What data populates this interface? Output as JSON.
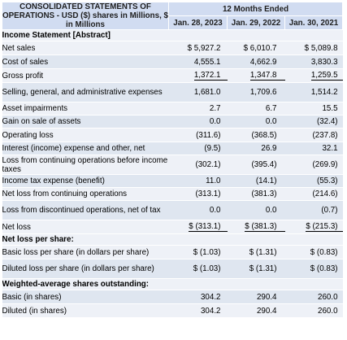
{
  "header": {
    "statement_title": "CONSOLIDATED STATEMENTS OF OPERATIONS - USD ($) shares in Millions, $ in Millions",
    "period_label": "12 Months Ended",
    "columns": [
      "Jan. 28, 2023",
      "Jan. 29, 2022",
      "Jan. 30, 2021"
    ]
  },
  "rows": [
    {
      "label": "Income Statement [Abstract]",
      "section": true,
      "values": [
        "",
        "",
        ""
      ]
    },
    {
      "label": "Net sales",
      "values": [
        "$ 5,927.2",
        "$ 6,010.7",
        "$ 5,089.8"
      ]
    },
    {
      "label": "Cost of sales",
      "values": [
        "4,555.1",
        "4,662.9",
        "3,830.3"
      ]
    },
    {
      "label": "Gross profit",
      "values": [
        "1,372.1",
        "1,347.8",
        "1,259.5"
      ]
    },
    {
      "label": "Selling, general, and administrative expenses",
      "values": [
        "1,681.0",
        "1,709.6",
        "1,514.2"
      ]
    },
    {
      "label": "Asset impairments",
      "values": [
        "2.7",
        "6.7",
        "15.5"
      ]
    },
    {
      "label": "Gain on sale of assets",
      "values": [
        "0.0",
        "0.0",
        "(32.4)"
      ]
    },
    {
      "label": "Operating loss",
      "values": [
        "(311.6)",
        "(368.5)",
        "(237.8)"
      ]
    },
    {
      "label": "Interest (income) expense and other, net",
      "values": [
        "(9.5)",
        "26.9",
        "32.1"
      ]
    },
    {
      "label": "Loss from continuing operations before income taxes",
      "values": [
        "(302.1)",
        "(395.4)",
        "(269.9)"
      ]
    },
    {
      "label": "Income tax expense (benefit)",
      "values": [
        "11.0",
        "(14.1)",
        "(55.3)"
      ]
    },
    {
      "label": "Net loss from continuing operations",
      "values": [
        "(313.1)",
        "(381.3)",
        "(214.6)"
      ]
    },
    {
      "label": "Loss from discontinued operations, net of tax",
      "values": [
        "0.0",
        "0.0",
        "(0.7)"
      ]
    },
    {
      "label": "Net loss",
      "values": [
        "$ (313.1)",
        "$ (381.3)",
        "$ (215.3)"
      ]
    },
    {
      "label": "Net loss per share:",
      "section": true,
      "values": [
        "",
        "",
        ""
      ]
    },
    {
      "label": "Basic loss per share (in dollars per share)",
      "values": [
        "$ (1.03)",
        "$ (1.31)",
        "$ (0.83)"
      ]
    },
    {
      "label": "Diluted loss per share (in dollars per share)",
      "values": [
        "$ (1.03)",
        "$ (1.31)",
        "$ (0.83)"
      ]
    },
    {
      "label": "Weighted-average shares outstanding:",
      "section": true,
      "values": [
        "",
        "",
        ""
      ]
    },
    {
      "label": "Basic (in shares)",
      "values": [
        "304.2",
        "290.4",
        "260.0"
      ]
    },
    {
      "label": "Diluted (in shares)",
      "values": [
        "304.2",
        "290.4",
        "260.0"
      ]
    }
  ]
}
